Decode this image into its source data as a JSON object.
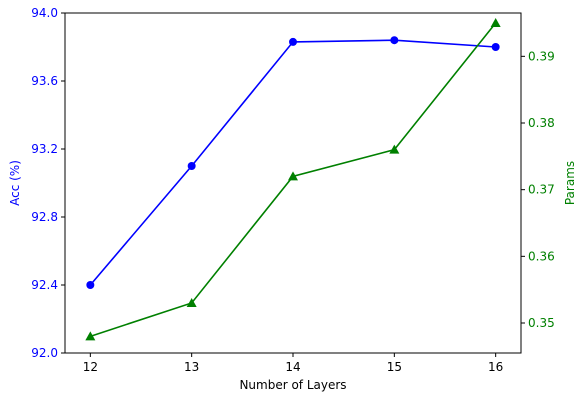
{
  "chart_data": {
    "type": "line",
    "xlabel": "Number of Layers",
    "x": [
      12,
      13,
      14,
      15,
      16
    ],
    "xticks": [
      "12",
      "13",
      "14",
      "15",
      "16"
    ],
    "xlim": [
      11.75,
      16.25
    ],
    "y_left": {
      "label": "Acc (%)",
      "lim": [
        92.0,
        94.0
      ],
      "ticks": [
        92.0,
        92.4,
        92.8,
        93.2,
        93.6,
        94.0
      ],
      "tick_labels": [
        "92.0",
        "92.4",
        "92.8",
        "93.2",
        "93.6",
        "94.0"
      ],
      "color": "#0000ff"
    },
    "y_right": {
      "label": "Params",
      "lim": [
        0.3455,
        0.3965
      ],
      "ticks": [
        0.35,
        0.36,
        0.37,
        0.38,
        0.39
      ],
      "tick_labels": [
        "0.35",
        "0.36",
        "0.37",
        "0.38",
        "0.39"
      ],
      "color": "#008000"
    },
    "series": [
      {
        "axis": "left",
        "color": "#0000ff",
        "marker": "circle",
        "values": [
          92.4,
          93.1,
          93.83,
          93.84,
          93.8
        ]
      },
      {
        "axis": "right",
        "color": "#008000",
        "marker": "triangle",
        "values": [
          0.348,
          0.353,
          0.372,
          0.376,
          0.395
        ]
      }
    ],
    "grid": false,
    "legend": "none"
  }
}
